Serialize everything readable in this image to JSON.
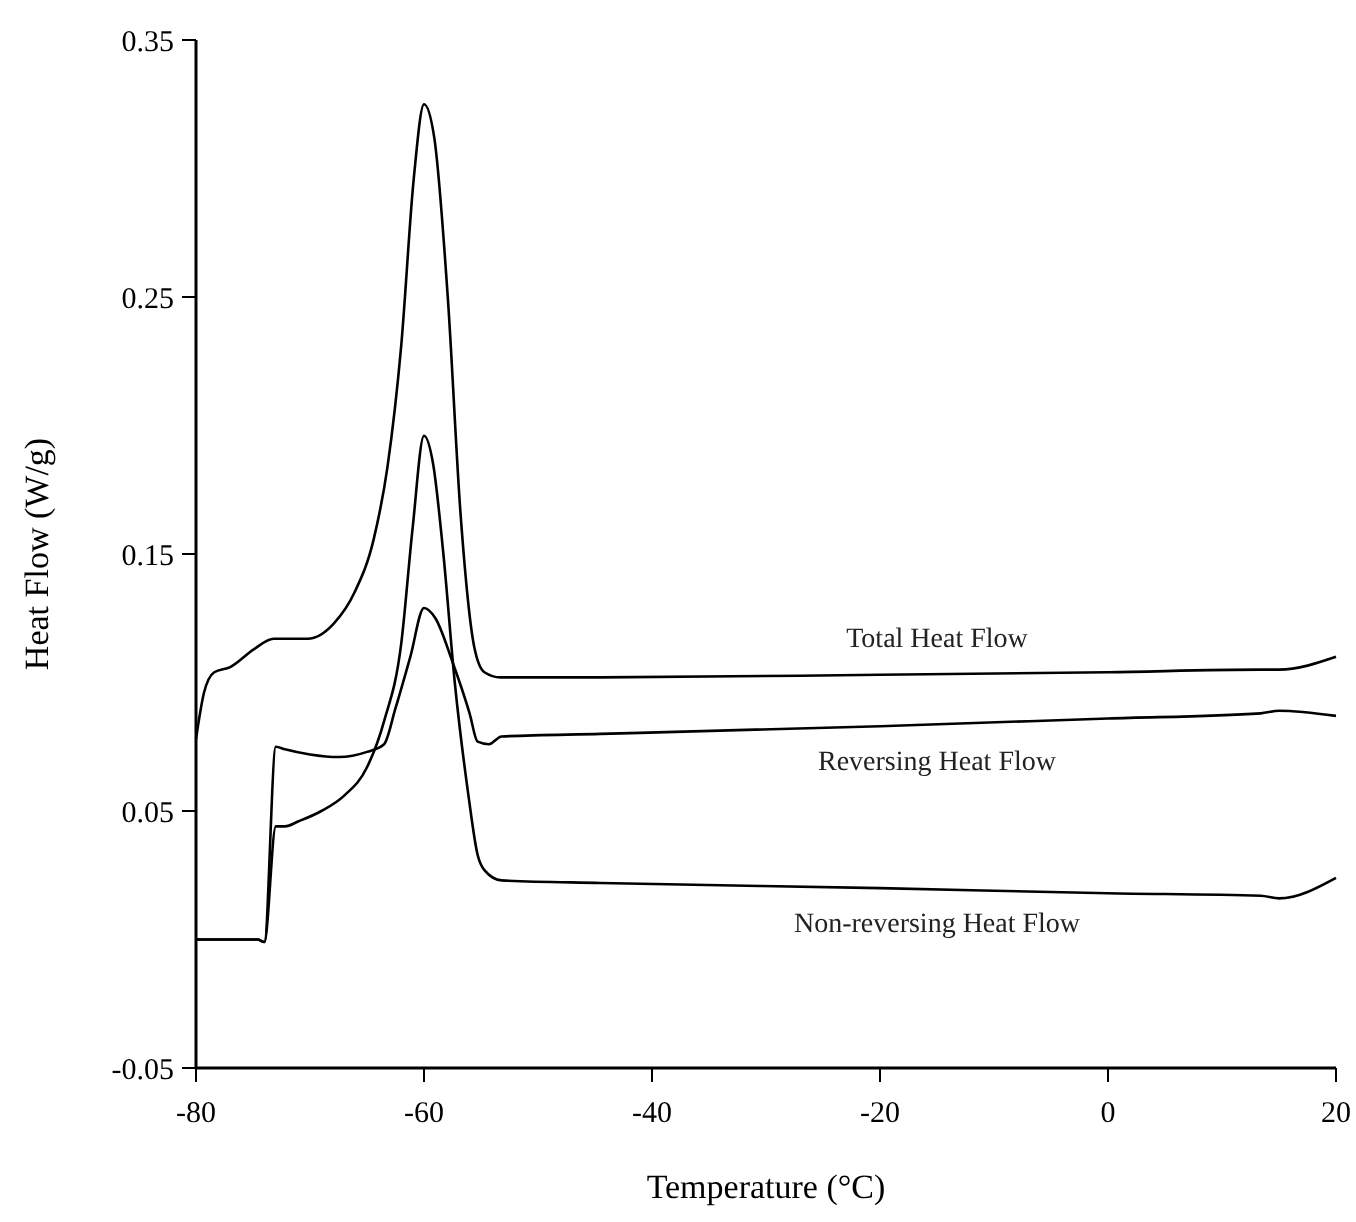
{
  "chart_data": {
    "type": "line",
    "xlabel": "Temperature (°C)",
    "ylabel": "Heat Flow (W/g)",
    "xlim": [
      -80,
      20
    ],
    "ylim": [
      -0.05,
      0.35
    ],
    "xticks": [
      -80,
      -60,
      -40,
      -20,
      0,
      20
    ],
    "yticks": [
      -0.05,
      0.05,
      0.15,
      0.25,
      0.35
    ],
    "grid": false,
    "marker": "none",
    "line_style": "solid",
    "series": [
      {
        "name": "Total Heat Flow",
        "color": "#000000",
        "x": [
          -80,
          -79.3,
          -78.4,
          -77,
          -74.9,
          -73.2,
          -70.2,
          -67.9,
          -66.1,
          -64.4,
          -63.2,
          -62,
          -60.9,
          -60,
          -59.1,
          -57.9,
          -56.8,
          -55.6,
          -54.7,
          -53.3,
          -44.5,
          -20,
          0,
          13.4,
          15,
          20
        ],
        "values": [
          0.078,
          0.096,
          0.104,
          0.106,
          0.113,
          0.117,
          0.117,
          0.123,
          0.135,
          0.156,
          0.184,
          0.231,
          0.296,
          0.325,
          0.312,
          0.249,
          0.166,
          0.114,
          0.104,
          0.102,
          0.102,
          0.103,
          0.104,
          0.105,
          0.105,
          0.11
        ]
      },
      {
        "name": "Reversing Heat Flow",
        "color": "#000000",
        "x": [
          -80,
          -74.6,
          -74,
          -73,
          -72.2,
          -70,
          -67.5,
          -65,
          -63.5,
          -62.5,
          -61.2,
          -60,
          -59,
          -57.5,
          -56,
          -55.3,
          -54.3,
          -53.2,
          -44.5,
          -20,
          0,
          13.4,
          15,
          20
        ],
        "values": [
          0.0,
          0.0,
          -0.001,
          0.075,
          0.074,
          0.072,
          0.071,
          0.073,
          0.076,
          0.09,
          0.11,
          0.129,
          0.125,
          0.108,
          0.088,
          0.077,
          0.076,
          0.079,
          0.08,
          0.083,
          0.086,
          0.088,
          0.089,
          0.087
        ]
      },
      {
        "name": "Non-reversing Heat Flow",
        "color": "#000000",
        "x": [
          -80,
          -74.6,
          -74,
          -73,
          -72.2,
          -71,
          -69,
          -67,
          -65,
          -63.5,
          -62,
          -61,
          -60,
          -59.2,
          -58.3,
          -57.3,
          -56.1,
          -55.3,
          -54.7,
          -53.2,
          -44.5,
          -20,
          0,
          13.4,
          15,
          20
        ],
        "values": [
          0.0,
          0.0,
          -0.001,
          0.044,
          0.044,
          0.046,
          0.05,
          0.056,
          0.067,
          0.085,
          0.115,
          0.16,
          0.196,
          0.185,
          0.15,
          0.1,
          0.056,
          0.033,
          0.027,
          0.023,
          0.022,
          0.02,
          0.018,
          0.017,
          0.016,
          0.024
        ]
      }
    ]
  }
}
